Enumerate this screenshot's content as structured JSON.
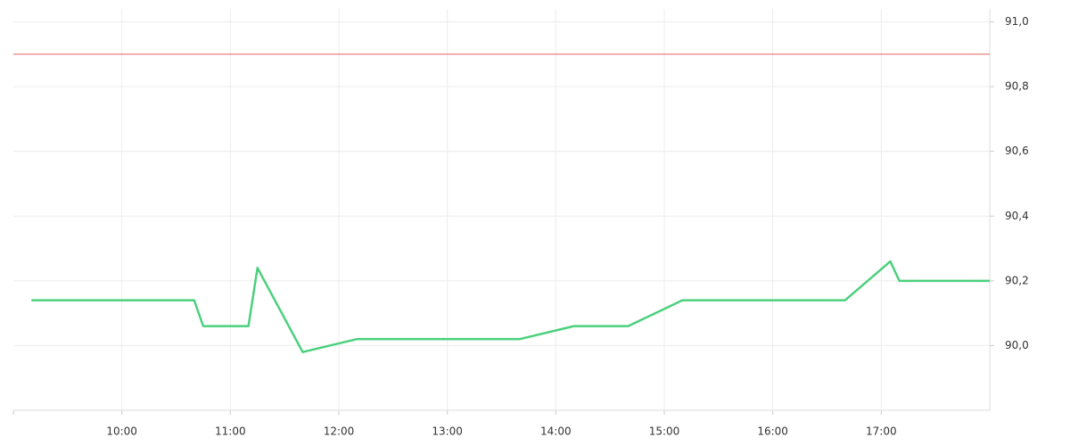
{
  "chart_data": {
    "type": "line",
    "x": [
      "09:10",
      "10:40",
      "10:45",
      "11:10",
      "11:15",
      "11:40",
      "12:10",
      "13:40",
      "14:10",
      "14:40",
      "15:10",
      "16:40",
      "17:05",
      "17:10",
      "18:00"
    ],
    "series": [
      {
        "color": "#4cd07d",
        "values": [
          90.14,
          90.14,
          90.06,
          90.06,
          90.24,
          89.98,
          90.02,
          90.02,
          90.06,
          90.06,
          90.14,
          90.14,
          90.26,
          90.2,
          90.2
        ]
      }
    ],
    "xlim": [
      "09:00",
      "18:00"
    ],
    "xticks": [
      "10:00",
      "11:00",
      "12:00",
      "13:00",
      "14:00",
      "15:00",
      "16:00",
      "17:00"
    ],
    "ylim": [
      89.8,
      91.04
    ],
    "yticks": [
      {
        "value": 90,
        "label": "90,0"
      },
      {
        "value": 90.2,
        "label": "90,2"
      },
      {
        "value": 90.4,
        "label": "90,4"
      },
      {
        "value": 90.6,
        "label": "90,6"
      },
      {
        "value": 90.8,
        "label": "90,8"
      },
      {
        "value": 91,
        "label": "91,0"
      }
    ],
    "reference_line": {
      "value": 90.9,
      "color": "#e06060"
    },
    "grid": true
  }
}
